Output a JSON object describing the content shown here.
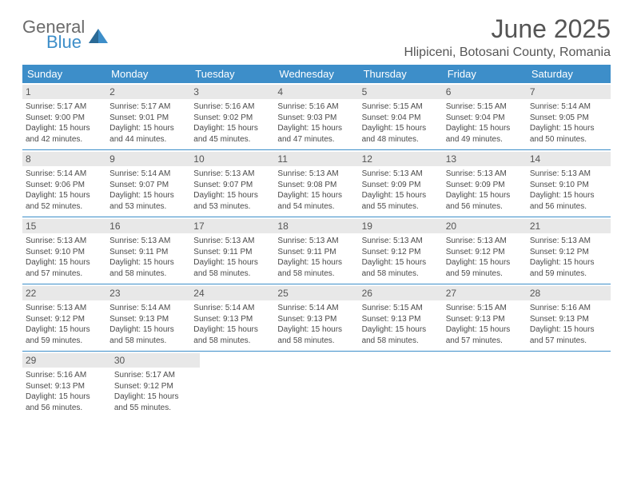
{
  "logo": {
    "general": "General",
    "blue": "Blue"
  },
  "title": "June 2025",
  "location": "Hlipiceni, Botosani County, Romania",
  "colors": {
    "header_bg": "#3d8ec9",
    "header_text": "#ffffff",
    "daynum_bg": "#e8e8e8",
    "text": "#4a4a4a",
    "rule": "#3d8ec9",
    "page_bg": "#ffffff"
  },
  "fonts": {
    "title_size_pt": 24,
    "location_size_pt": 12,
    "dayhead_size_pt": 10,
    "daynum_size_pt": 9,
    "body_size_pt": 7.5
  },
  "day_headers": [
    "Sunday",
    "Monday",
    "Tuesday",
    "Wednesday",
    "Thursday",
    "Friday",
    "Saturday"
  ],
  "weeks": [
    [
      {
        "n": "1",
        "sr": "Sunrise: 5:17 AM",
        "ss": "Sunset: 9:00 PM",
        "d1": "Daylight: 15 hours",
        "d2": "and 42 minutes."
      },
      {
        "n": "2",
        "sr": "Sunrise: 5:17 AM",
        "ss": "Sunset: 9:01 PM",
        "d1": "Daylight: 15 hours",
        "d2": "and 44 minutes."
      },
      {
        "n": "3",
        "sr": "Sunrise: 5:16 AM",
        "ss": "Sunset: 9:02 PM",
        "d1": "Daylight: 15 hours",
        "d2": "and 45 minutes."
      },
      {
        "n": "4",
        "sr": "Sunrise: 5:16 AM",
        "ss": "Sunset: 9:03 PM",
        "d1": "Daylight: 15 hours",
        "d2": "and 47 minutes."
      },
      {
        "n": "5",
        "sr": "Sunrise: 5:15 AM",
        "ss": "Sunset: 9:04 PM",
        "d1": "Daylight: 15 hours",
        "d2": "and 48 minutes."
      },
      {
        "n": "6",
        "sr": "Sunrise: 5:15 AM",
        "ss": "Sunset: 9:04 PM",
        "d1": "Daylight: 15 hours",
        "d2": "and 49 minutes."
      },
      {
        "n": "7",
        "sr": "Sunrise: 5:14 AM",
        "ss": "Sunset: 9:05 PM",
        "d1": "Daylight: 15 hours",
        "d2": "and 50 minutes."
      }
    ],
    [
      {
        "n": "8",
        "sr": "Sunrise: 5:14 AM",
        "ss": "Sunset: 9:06 PM",
        "d1": "Daylight: 15 hours",
        "d2": "and 52 minutes."
      },
      {
        "n": "9",
        "sr": "Sunrise: 5:14 AM",
        "ss": "Sunset: 9:07 PM",
        "d1": "Daylight: 15 hours",
        "d2": "and 53 minutes."
      },
      {
        "n": "10",
        "sr": "Sunrise: 5:13 AM",
        "ss": "Sunset: 9:07 PM",
        "d1": "Daylight: 15 hours",
        "d2": "and 53 minutes."
      },
      {
        "n": "11",
        "sr": "Sunrise: 5:13 AM",
        "ss": "Sunset: 9:08 PM",
        "d1": "Daylight: 15 hours",
        "d2": "and 54 minutes."
      },
      {
        "n": "12",
        "sr": "Sunrise: 5:13 AM",
        "ss": "Sunset: 9:09 PM",
        "d1": "Daylight: 15 hours",
        "d2": "and 55 minutes."
      },
      {
        "n": "13",
        "sr": "Sunrise: 5:13 AM",
        "ss": "Sunset: 9:09 PM",
        "d1": "Daylight: 15 hours",
        "d2": "and 56 minutes."
      },
      {
        "n": "14",
        "sr": "Sunrise: 5:13 AM",
        "ss": "Sunset: 9:10 PM",
        "d1": "Daylight: 15 hours",
        "d2": "and 56 minutes."
      }
    ],
    [
      {
        "n": "15",
        "sr": "Sunrise: 5:13 AM",
        "ss": "Sunset: 9:10 PM",
        "d1": "Daylight: 15 hours",
        "d2": "and 57 minutes."
      },
      {
        "n": "16",
        "sr": "Sunrise: 5:13 AM",
        "ss": "Sunset: 9:11 PM",
        "d1": "Daylight: 15 hours",
        "d2": "and 58 minutes."
      },
      {
        "n": "17",
        "sr": "Sunrise: 5:13 AM",
        "ss": "Sunset: 9:11 PM",
        "d1": "Daylight: 15 hours",
        "d2": "and 58 minutes."
      },
      {
        "n": "18",
        "sr": "Sunrise: 5:13 AM",
        "ss": "Sunset: 9:11 PM",
        "d1": "Daylight: 15 hours",
        "d2": "and 58 minutes."
      },
      {
        "n": "19",
        "sr": "Sunrise: 5:13 AM",
        "ss": "Sunset: 9:12 PM",
        "d1": "Daylight: 15 hours",
        "d2": "and 58 minutes."
      },
      {
        "n": "20",
        "sr": "Sunrise: 5:13 AM",
        "ss": "Sunset: 9:12 PM",
        "d1": "Daylight: 15 hours",
        "d2": "and 59 minutes."
      },
      {
        "n": "21",
        "sr": "Sunrise: 5:13 AM",
        "ss": "Sunset: 9:12 PM",
        "d1": "Daylight: 15 hours",
        "d2": "and 59 minutes."
      }
    ],
    [
      {
        "n": "22",
        "sr": "Sunrise: 5:13 AM",
        "ss": "Sunset: 9:12 PM",
        "d1": "Daylight: 15 hours",
        "d2": "and 59 minutes."
      },
      {
        "n": "23",
        "sr": "Sunrise: 5:14 AM",
        "ss": "Sunset: 9:13 PM",
        "d1": "Daylight: 15 hours",
        "d2": "and 58 minutes."
      },
      {
        "n": "24",
        "sr": "Sunrise: 5:14 AM",
        "ss": "Sunset: 9:13 PM",
        "d1": "Daylight: 15 hours",
        "d2": "and 58 minutes."
      },
      {
        "n": "25",
        "sr": "Sunrise: 5:14 AM",
        "ss": "Sunset: 9:13 PM",
        "d1": "Daylight: 15 hours",
        "d2": "and 58 minutes."
      },
      {
        "n": "26",
        "sr": "Sunrise: 5:15 AM",
        "ss": "Sunset: 9:13 PM",
        "d1": "Daylight: 15 hours",
        "d2": "and 58 minutes."
      },
      {
        "n": "27",
        "sr": "Sunrise: 5:15 AM",
        "ss": "Sunset: 9:13 PM",
        "d1": "Daylight: 15 hours",
        "d2": "and 57 minutes."
      },
      {
        "n": "28",
        "sr": "Sunrise: 5:16 AM",
        "ss": "Sunset: 9:13 PM",
        "d1": "Daylight: 15 hours",
        "d2": "and 57 minutes."
      }
    ],
    [
      {
        "n": "29",
        "sr": "Sunrise: 5:16 AM",
        "ss": "Sunset: 9:13 PM",
        "d1": "Daylight: 15 hours",
        "d2": "and 56 minutes."
      },
      {
        "n": "30",
        "sr": "Sunrise: 5:17 AM",
        "ss": "Sunset: 9:12 PM",
        "d1": "Daylight: 15 hours",
        "d2": "and 55 minutes."
      },
      null,
      null,
      null,
      null,
      null
    ]
  ]
}
